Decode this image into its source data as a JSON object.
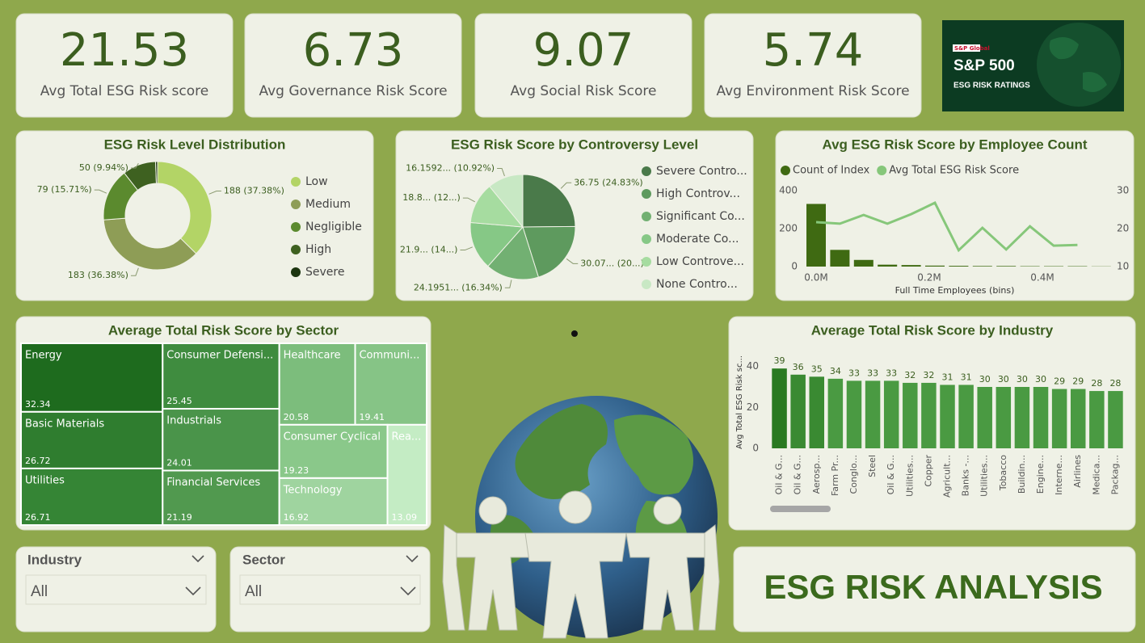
{
  "kpis": [
    {
      "value": 21.53,
      "label": "Avg Total ESG Risk score"
    },
    {
      "value": 6.73,
      "label": "Avg Governance Risk Score"
    },
    {
      "value": 9.07,
      "label": "Avg Social Risk Score"
    },
    {
      "value": 5.74,
      "label": "Avg Environment Risk Score"
    }
  ],
  "logo": {
    "brand": "S&P Global",
    "title": "S&P 500",
    "subtitle": "ESG RISK RATINGS"
  },
  "chart_data": [
    {
      "type": "donut",
      "title": "ESG Risk Level Distribution",
      "categories": [
        "Low",
        "Medium",
        "Negligible",
        "High",
        "Severe"
      ],
      "values": [
        188,
        183,
        79,
        50,
        3
      ],
      "value_labels": [
        "188 (37.38%)",
        "183 (36.38%)",
        "79 (15.71%)",
        "50 (9.94%)",
        null
      ],
      "colors": [
        "#b3d466",
        "#8e9d56",
        "#5b8a2e",
        "#3e6120",
        "#1c3510"
      ]
    },
    {
      "type": "pie",
      "title": "ESG Risk Score by Controversy Level",
      "categories": [
        "Severe Contro...",
        "High Controv...",
        "Significant Co...",
        "Moderate Co...",
        "Low Controve...",
        "None Contro..."
      ],
      "values": [
        36.75,
        30.07,
        24.1951,
        21.9,
        18.8,
        16.1592
      ],
      "value_labels": [
        "36.75 (24.83%)",
        "30.07... (20...)",
        "24.1951... (16.34%)",
        "21.9... (14...)",
        "18.8... (12...)",
        "16.1592... (10.92%)"
      ],
      "colors": [
        "#4a7a4a",
        "#5e9a5e",
        "#72b072",
        "#86c886",
        "#a6dca0",
        "#c8e8c4"
      ]
    },
    {
      "type": "combo",
      "title": "Avg ESG Risk Score by Employee Count",
      "x_label": "Full Time Employees (bins)",
      "x": [
        0,
        42000,
        84000,
        126000,
        168000,
        210000,
        252000,
        294000,
        336000,
        378000,
        420000,
        462000,
        504000
      ],
      "series": [
        {
          "name": "Count of Index",
          "type": "bar",
          "color": "#3f6a12",
          "values": [
            330,
            88,
            35,
            10,
            8,
            5,
            4,
            3,
            3,
            2,
            2,
            2,
            1
          ]
        },
        {
          "name": "Avg Total ESG Risk Score",
          "type": "line",
          "axis": "y2",
          "color": "#86c77a",
          "values": [
            21.7,
            21.3,
            23.6,
            21.3,
            23.8,
            26.8,
            14.3,
            20.2,
            14.5,
            20.6,
            15.5,
            15.7,
            null
          ]
        }
      ],
      "xlim": [
        -30000,
        520000
      ],
      "xticks": [
        {
          "value": 0,
          "label": "0.0M"
        },
        {
          "value": 200000,
          "label": "0.2M"
        },
        {
          "value": 400000,
          "label": "0.4M"
        }
      ],
      "ylim": [
        0,
        400
      ],
      "yticks": [
        0,
        200,
        400
      ],
      "y2lim": [
        10,
        30
      ],
      "y2ticks": [
        10,
        20,
        30
      ]
    },
    {
      "type": "treemap",
      "title": "Average Total Risk Score by Sector",
      "categories": [
        "Energy",
        "Basic Materials",
        "Utilities",
        "Consumer Defensi...",
        "Industrials",
        "Financial Services",
        "Healthcare",
        "Communi...",
        "Consumer Cyclical",
        "Technology",
        "Rea..."
      ],
      "values": [
        32.34,
        26.72,
        26.71,
        25.45,
        24.01,
        21.19,
        20.58,
        19.41,
        19.23,
        16.92,
        13.09
      ],
      "colors": [
        "#1e6b1e",
        "#2f7d2f",
        "#358535",
        "#3f8c3f",
        "#4a944a",
        "#51994f",
        "#7cbd7c",
        "#86c486",
        "#8ac88a",
        "#9fd49f",
        "#c4ecc4"
      ]
    },
    {
      "type": "bar",
      "title": "Average Total Risk Score by Industry",
      "y_label": "Avg Total ESG Risk sc...",
      "categories": [
        "Oil & G...",
        "Oil & G...",
        "Aerosp...",
        "Farm Pr...",
        "Conglo...",
        "Steel",
        "Oil & G...",
        "Utilities...",
        "Copper",
        "Agricult...",
        "Banks -...",
        "Utilities...",
        "Tobacco",
        "Buildin...",
        "Engine...",
        "Interne...",
        "Airlines",
        "Medica...",
        "Packag..."
      ],
      "values": [
        39,
        36,
        35,
        34,
        33,
        33,
        33,
        32,
        32,
        31,
        31,
        30,
        30,
        30,
        30,
        29,
        29,
        28,
        28
      ],
      "colors": [
        "#2a7a22",
        "#3a8a32",
        "#3a8a32",
        "#4a9a42",
        "#4a9a42",
        "#4a9a42",
        "#4a9a42",
        "#4a9a42",
        "#4a9a42",
        "#4a9a42",
        "#4a9a42",
        "#4a9a42",
        "#4a9a42",
        "#4a9a42",
        "#4a9a42",
        "#4a9a42",
        "#4a9a42",
        "#4a9a42",
        "#4a9a42"
      ],
      "ylim": [
        0,
        45
      ],
      "yticks": [
        0,
        20,
        40
      ]
    }
  ],
  "slicers": [
    {
      "label": "Industry",
      "selection": "All"
    },
    {
      "label": "Sector",
      "selection": "All"
    }
  ],
  "banner": "ESG RISK ANALYSIS"
}
